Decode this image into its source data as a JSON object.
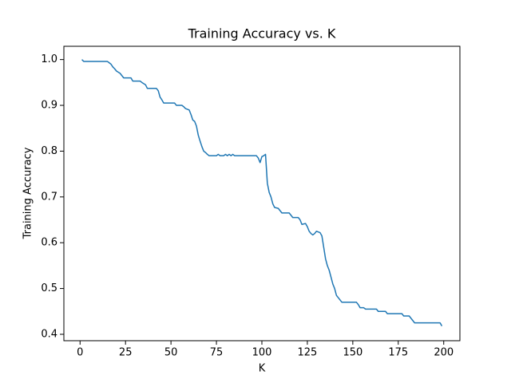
{
  "chart_data": {
    "type": "line",
    "title": "Training Accuracy vs. K",
    "xlabel": "K",
    "ylabel": "Training Accuracy",
    "x": [
      1,
      2,
      15,
      16,
      17,
      18,
      19,
      20,
      22,
      23,
      24,
      28,
      29,
      33,
      34,
      36,
      37,
      42,
      43,
      44,
      45,
      46,
      52,
      53,
      56,
      57,
      58,
      60,
      61,
      62,
      63,
      64,
      65,
      66,
      67,
      68,
      69,
      70,
      71,
      75,
      76,
      77,
      79,
      80,
      81,
      82,
      83,
      84,
      85,
      97,
      98,
      99,
      100,
      101,
      102,
      103,
      104,
      105,
      106,
      107,
      109,
      110,
      111,
      115,
      116,
      117,
      120,
      121,
      122,
      124,
      125,
      126,
      127,
      128,
      129,
      130,
      132,
      133,
      134,
      135,
      136,
      137,
      138,
      139,
      140,
      141,
      142,
      143,
      144,
      152,
      153,
      154,
      156,
      157,
      163,
      164,
      168,
      169,
      177,
      178,
      181,
      182,
      183,
      184,
      198,
      199
    ],
    "series": [
      {
        "name": "Training Accuracy",
        "color": "#1f77b4",
        "values": [
          1.0,
          0.996,
          0.996,
          0.993,
          0.99,
          0.984,
          0.98,
          0.975,
          0.97,
          0.965,
          0.96,
          0.96,
          0.953,
          0.953,
          0.95,
          0.945,
          0.937,
          0.937,
          0.932,
          0.918,
          0.912,
          0.905,
          0.905,
          0.9,
          0.9,
          0.897,
          0.893,
          0.89,
          0.88,
          0.868,
          0.865,
          0.855,
          0.835,
          0.822,
          0.81,
          0.8,
          0.797,
          0.793,
          0.79,
          0.79,
          0.793,
          0.79,
          0.79,
          0.793,
          0.79,
          0.793,
          0.79,
          0.793,
          0.79,
          0.79,
          0.785,
          0.775,
          0.788,
          0.79,
          0.793,
          0.73,
          0.71,
          0.7,
          0.685,
          0.677,
          0.675,
          0.67,
          0.665,
          0.665,
          0.66,
          0.655,
          0.655,
          0.65,
          0.64,
          0.642,
          0.635,
          0.625,
          0.62,
          0.617,
          0.62,
          0.625,
          0.622,
          0.615,
          0.59,
          0.565,
          0.55,
          0.54,
          0.525,
          0.51,
          0.5,
          0.485,
          0.48,
          0.475,
          0.47,
          0.47,
          0.465,
          0.458,
          0.458,
          0.455,
          0.455,
          0.45,
          0.45,
          0.445,
          0.445,
          0.44,
          0.44,
          0.435,
          0.43,
          0.425,
          0.425,
          0.418
        ]
      }
    ],
    "xlim": [
      -8.9,
      208.9
    ],
    "ylim": [
      0.386,
      1.029
    ],
    "xticks": [
      0,
      25,
      50,
      75,
      100,
      125,
      150,
      175,
      200
    ],
    "yticks": [
      {
        "value": 0.4,
        "label": "0.4"
      },
      {
        "value": 0.5,
        "label": "0.5"
      },
      {
        "value": 0.6,
        "label": "0.6"
      },
      {
        "value": 0.7,
        "label": "0.7"
      },
      {
        "value": 0.8,
        "label": "0.8"
      },
      {
        "value": 0.9,
        "label": "0.9"
      },
      {
        "value": 1.0,
        "label": "1.0"
      }
    ],
    "grid": false
  }
}
